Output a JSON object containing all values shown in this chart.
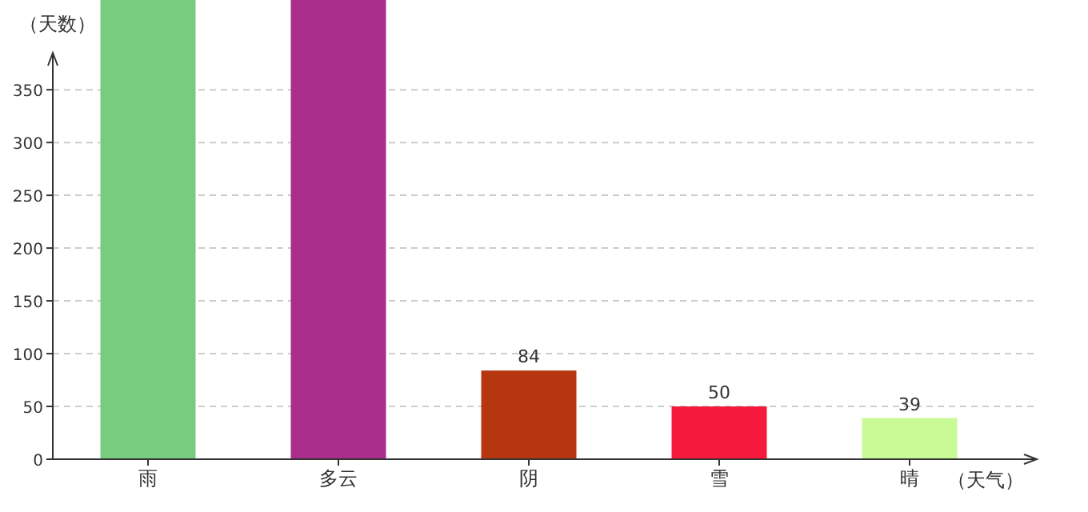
{
  "chart_data": {
    "type": "bar",
    "xlabel": "（天气）",
    "ylabel": "（天数）",
    "categories": [
      "雨",
      "多云",
      "阴",
      "雪",
      "晴"
    ],
    "values": [
      435,
      435,
      84,
      50,
      39
    ],
    "colors": [
      "#77cc7f",
      "#a92d8a",
      "#b5360f",
      "#f5193c",
      "#c8fa96"
    ],
    "value_labels": [
      null,
      null,
      "84",
      "50",
      "39"
    ],
    "ylim": [
      0,
      435
    ],
    "yticks": [
      0,
      50,
      100,
      150,
      200,
      250,
      300,
      350
    ],
    "grid": "y"
  }
}
